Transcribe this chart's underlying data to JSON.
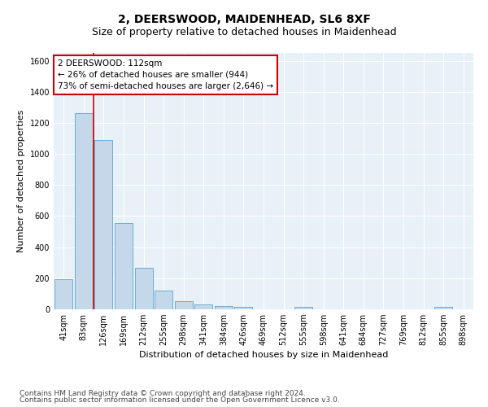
{
  "title": "2, DEERSWOOD, MAIDENHEAD, SL6 8XF",
  "subtitle": "Size of property relative to detached houses in Maidenhead",
  "xlabel": "Distribution of detached houses by size in Maidenhead",
  "ylabel": "Number of detached properties",
  "categories": [
    "41sqm",
    "83sqm",
    "126sqm",
    "169sqm",
    "212sqm",
    "255sqm",
    "298sqm",
    "341sqm",
    "384sqm",
    "426sqm",
    "469sqm",
    "512sqm",
    "555sqm",
    "598sqm",
    "641sqm",
    "684sqm",
    "727sqm",
    "769sqm",
    "812sqm",
    "855sqm",
    "898sqm"
  ],
  "values": [
    195,
    1265,
    1090,
    555,
    265,
    120,
    55,
    30,
    20,
    15,
    0,
    0,
    15,
    0,
    0,
    0,
    0,
    0,
    0,
    15,
    0
  ],
  "bar_color": "#c5d8ea",
  "bar_edge_color": "#6aadd5",
  "vline_x": 1.5,
  "annotation_line1": "2 DEERSWOOD: 112sqm",
  "annotation_line2": "← 26% of detached houses are smaller (944)",
  "annotation_line3": "73% of semi-detached houses are larger (2,646) →",
  "annotation_box_color": "#ffffff",
  "annotation_box_edge_color": "#cc0000",
  "vline_color": "#cc0000",
  "ylim": [
    0,
    1650
  ],
  "yticks": [
    0,
    200,
    400,
    600,
    800,
    1000,
    1200,
    1400,
    1600
  ],
  "footer_line1": "Contains HM Land Registry data © Crown copyright and database right 2024.",
  "footer_line2": "Contains public sector information licensed under the Open Government Licence v3.0.",
  "bg_color": "#e8f0f8",
  "fig_bg_color": "#ffffff",
  "title_fontsize": 10,
  "subtitle_fontsize": 9,
  "axis_label_fontsize": 8,
  "tick_fontsize": 7,
  "annotation_fontsize": 7.5,
  "footer_fontsize": 6.5
}
